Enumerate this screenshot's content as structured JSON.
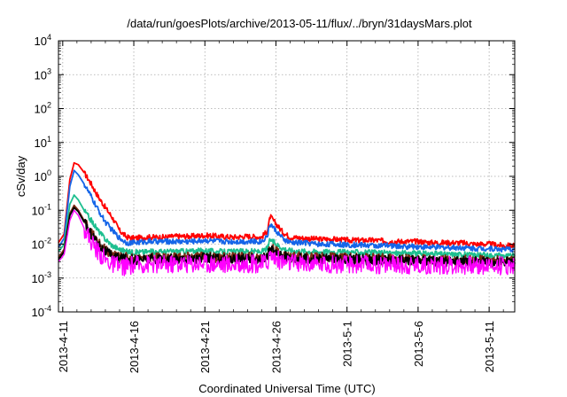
{
  "chart_data": {
    "type": "line",
    "title": "/data/run/goesPlots/archive/2013-05-11/flux/../bryn/31daysMars.plot",
    "xlabel": "Coordinated Universal Time (UTC)",
    "ylabel": "cSv/day",
    "yscale": "log",
    "ylim": [
      0.0001,
      10000
    ],
    "xlim": [
      -0.3,
      31.8
    ],
    "grid": true,
    "legend": "none",
    "y_ticks": [
      {
        "value": 0.0001,
        "base": "10",
        "exp": "-4"
      },
      {
        "value": 0.001,
        "base": "10",
        "exp": "-3"
      },
      {
        "value": 0.01,
        "base": "10",
        "exp": "-2"
      },
      {
        "value": 0.1,
        "base": "10",
        "exp": "-1"
      },
      {
        "value": 1,
        "base": "10",
        "exp": "0"
      },
      {
        "value": 10,
        "base": "10",
        "exp": "1"
      },
      {
        "value": 100,
        "base": "10",
        "exp": "2"
      },
      {
        "value": 1000,
        "base": "10",
        "exp": "3"
      },
      {
        "value": 10000,
        "base": "10",
        "exp": "4"
      }
    ],
    "x_ticks": [
      {
        "value": 0,
        "label": "2013-4-11"
      },
      {
        "value": 5,
        "label": "2013-4-16"
      },
      {
        "value": 10,
        "label": "2013-4-21"
      },
      {
        "value": 15,
        "label": "2013-4-26"
      },
      {
        "value": 20,
        "label": "2013-5-1"
      },
      {
        "value": 25,
        "label": "2013-5-6"
      },
      {
        "value": 30,
        "label": "2013-5-11"
      }
    ],
    "x_unit": "days after 2013-4-11",
    "series": [
      {
        "color": "#ff0000",
        "x": [
          -0.3,
          0.1,
          0.5,
          0.8,
          1.1,
          1.5,
          2,
          2.5,
          3,
          3.5,
          4,
          4.5,
          5,
          6,
          7,
          8,
          9,
          10,
          11,
          12,
          13,
          14,
          14.4,
          14.6,
          15,
          15.5,
          16,
          17,
          18,
          19,
          20,
          21,
          22,
          23,
          24,
          25,
          26,
          27,
          28,
          29,
          30,
          31,
          31.8
        ],
        "y": [
          0.011,
          0.02,
          0.8,
          2.5,
          2.2,
          1.3,
          0.6,
          0.25,
          0.12,
          0.06,
          0.025,
          0.016,
          0.015,
          0.016,
          0.016,
          0.017,
          0.017,
          0.018,
          0.017,
          0.016,
          0.017,
          0.016,
          0.025,
          0.065,
          0.04,
          0.022,
          0.016,
          0.015,
          0.014,
          0.014,
          0.013,
          0.013,
          0.013,
          0.012,
          0.012,
          0.012,
          0.011,
          0.011,
          0.011,
          0.01,
          0.01,
          0.009,
          0.009
        ]
      },
      {
        "color": "#1565e8",
        "x": [
          -0.3,
          0.1,
          0.5,
          0.8,
          1.1,
          1.5,
          2,
          2.5,
          3,
          3.5,
          4,
          4.5,
          5,
          6,
          7,
          8,
          9,
          10,
          11,
          12,
          13,
          14,
          14.4,
          14.6,
          15,
          15.5,
          16,
          17,
          18,
          19,
          20,
          21,
          22,
          23,
          24,
          25,
          26,
          27,
          28,
          29,
          30,
          31,
          31.8
        ],
        "y": [
          0.008,
          0.015,
          0.5,
          1.5,
          1.1,
          0.6,
          0.25,
          0.1,
          0.045,
          0.025,
          0.015,
          0.011,
          0.011,
          0.012,
          0.012,
          0.012,
          0.012,
          0.013,
          0.012,
          0.012,
          0.012,
          0.012,
          0.018,
          0.04,
          0.025,
          0.014,
          0.011,
          0.011,
          0.01,
          0.01,
          0.0095,
          0.0095,
          0.009,
          0.009,
          0.0085,
          0.0085,
          0.008,
          0.008,
          0.008,
          0.0075,
          0.0075,
          0.007,
          0.007
        ]
      },
      {
        "color": "#1dbf8f",
        "x": [
          -0.3,
          0.1,
          0.5,
          0.8,
          1.1,
          1.5,
          2,
          2.5,
          3,
          3.5,
          4,
          4.5,
          5,
          6,
          7,
          8,
          9,
          10,
          11,
          12,
          13,
          14,
          14.4,
          14.6,
          15,
          15.5,
          16,
          17,
          18,
          19,
          20,
          21,
          22,
          23,
          24,
          25,
          26,
          27,
          28,
          29,
          30,
          31,
          31.8
        ],
        "y": [
          0.006,
          0.01,
          0.15,
          0.28,
          0.2,
          0.1,
          0.05,
          0.025,
          0.014,
          0.009,
          0.007,
          0.006,
          0.0058,
          0.006,
          0.006,
          0.0062,
          0.0062,
          0.0065,
          0.006,
          0.006,
          0.0062,
          0.006,
          0.0075,
          0.014,
          0.01,
          0.0075,
          0.0065,
          0.0062,
          0.006,
          0.006,
          0.0058,
          0.0058,
          0.0056,
          0.0055,
          0.0054,
          0.0053,
          0.0052,
          0.005,
          0.005,
          0.0048,
          0.0047,
          0.0046,
          0.0045
        ]
      },
      {
        "color": "#7a2a12",
        "x": [
          -0.3,
          0.1,
          0.5,
          0.8,
          1.1,
          1.5,
          2,
          2.5,
          3,
          3.5,
          4,
          4.5,
          5,
          6,
          7,
          8,
          9,
          10,
          11,
          12,
          13,
          14,
          14.4,
          14.6,
          15,
          15.5,
          16,
          17,
          18,
          19,
          20,
          21,
          22,
          23,
          24,
          25,
          26,
          27,
          28,
          29,
          30,
          31,
          31.8
        ],
        "y": [
          0.004,
          0.007,
          0.08,
          0.14,
          0.1,
          0.05,
          0.022,
          0.011,
          0.0065,
          0.0048,
          0.0042,
          0.004,
          0.0038,
          0.004,
          0.004,
          0.0041,
          0.0041,
          0.0043,
          0.004,
          0.004,
          0.0041,
          0.004,
          0.0048,
          0.008,
          0.006,
          0.0048,
          0.0044,
          0.0042,
          0.004,
          0.004,
          0.0039,
          0.0039,
          0.0038,
          0.0037,
          0.0037,
          0.0036,
          0.0035,
          0.0034,
          0.0034,
          0.0033,
          0.0033,
          0.0032,
          0.0032
        ]
      },
      {
        "color": "#000000",
        "x": [
          -0.3,
          0.1,
          0.5,
          0.8,
          1.1,
          1.5,
          2,
          2.5,
          3,
          3.5,
          4,
          4.5,
          5,
          6,
          7,
          8,
          9,
          10,
          11,
          12,
          13,
          14,
          14.4,
          14.6,
          15,
          15.5,
          16,
          17,
          18,
          19,
          20,
          21,
          22,
          23,
          24,
          25,
          26,
          27,
          28,
          29,
          30,
          31,
          31.8
        ],
        "y": [
          0.0035,
          0.006,
          0.07,
          0.12,
          0.09,
          0.045,
          0.02,
          0.01,
          0.006,
          0.0044,
          0.0038,
          0.0036,
          0.0035,
          0.0036,
          0.0036,
          0.0037,
          0.0037,
          0.0039,
          0.0036,
          0.0036,
          0.0037,
          0.0036,
          0.0043,
          0.0072,
          0.0055,
          0.0044,
          0.004,
          0.0038,
          0.0036,
          0.0036,
          0.0035,
          0.0035,
          0.0034,
          0.0034,
          0.0033,
          0.0033,
          0.0032,
          0.0031,
          0.0031,
          0.003,
          0.003,
          0.003,
          0.0029
        ]
      },
      {
        "color": "#ff00ff",
        "x": [
          -0.3,
          0.1,
          0.5,
          0.8,
          1.1,
          1.5,
          2,
          2.5,
          3,
          3.5,
          4,
          4.5,
          5,
          6,
          7,
          8,
          9,
          10,
          11,
          12,
          13,
          14,
          14.4,
          14.6,
          15,
          15.5,
          16,
          17,
          18,
          19,
          20,
          21,
          22,
          23,
          24,
          25,
          26,
          27,
          28,
          29,
          30,
          31,
          31.8
        ],
        "y": [
          0.003,
          0.005,
          0.05,
          0.1,
          0.07,
          0.03,
          0.012,
          0.006,
          0.0035,
          0.0025,
          0.0022,
          0.0022,
          0.0024,
          0.0026,
          0.0025,
          0.0026,
          0.0027,
          0.0028,
          0.0026,
          0.0025,
          0.0027,
          0.0026,
          0.003,
          0.005,
          0.0038,
          0.003,
          0.0028,
          0.0027,
          0.0026,
          0.0026,
          0.0025,
          0.0026,
          0.0025,
          0.0025,
          0.0024,
          0.0025,
          0.0024,
          0.0024,
          0.0024,
          0.0023,
          0.0024,
          0.0023,
          0.0024
        ]
      }
    ]
  }
}
